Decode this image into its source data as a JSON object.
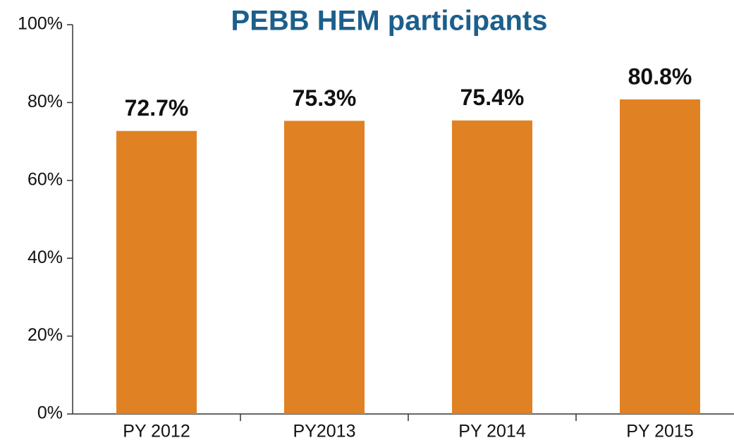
{
  "chart_data": {
    "type": "bar",
    "title": "PEBB HEM participants",
    "categories": [
      "PY 2012",
      "PY2013",
      "PY 2014",
      "PY 2015"
    ],
    "values": [
      72.7,
      75.3,
      75.4,
      80.8
    ],
    "value_labels": [
      "72.7%",
      "75.3%",
      "75.4%",
      "80.8%"
    ],
    "color": "#e08124",
    "ylim": [
      0,
      100
    ],
    "yticks": [
      {
        "value": 0,
        "label": "0%"
      },
      {
        "value": 20,
        "label": "20%"
      },
      {
        "value": 40,
        "label": "40%"
      },
      {
        "value": 60,
        "label": "60%"
      },
      {
        "value": 80,
        "label": "80%"
      },
      {
        "value": 100,
        "label": "100%"
      }
    ],
    "grid": false
  }
}
